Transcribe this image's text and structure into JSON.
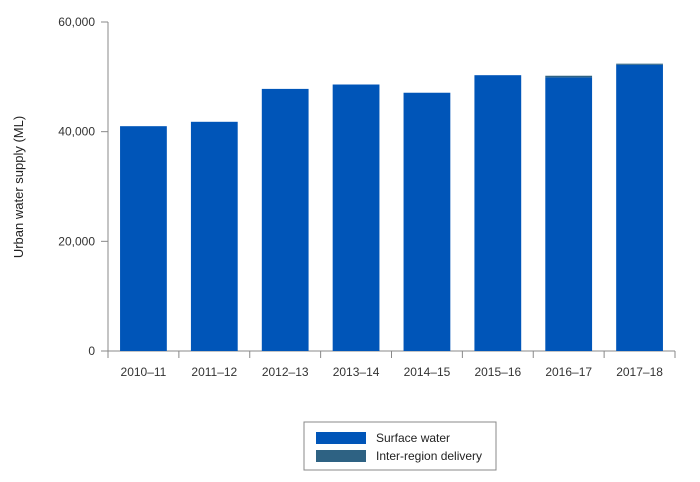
{
  "chart_data": {
    "type": "bar",
    "stacked": true,
    "ylabel": "Urban water supply (ML)",
    "ylim": [
      0,
      60000
    ],
    "yticks": [
      0,
      20000,
      40000,
      60000
    ],
    "ytick_labels": [
      "0",
      "20,000",
      "40,000",
      "60,000"
    ],
    "categories": [
      "2010–11",
      "2011–12",
      "2012–13",
      "2013–14",
      "2014–15",
      "2015–16",
      "2016–17",
      "2017–18"
    ],
    "series": [
      {
        "name": "Surface water",
        "color": "#0055b8",
        "values": [
          41000,
          41800,
          47800,
          48600,
          47100,
          50300,
          49900,
          52200
        ]
      },
      {
        "name": "Inter-region delivery",
        "color": "#2e6283",
        "values": [
          0,
          0,
          0,
          0,
          0,
          0,
          300,
          200
        ]
      }
    ],
    "legend": {
      "placement": "bottom-center"
    },
    "grid": false
  }
}
